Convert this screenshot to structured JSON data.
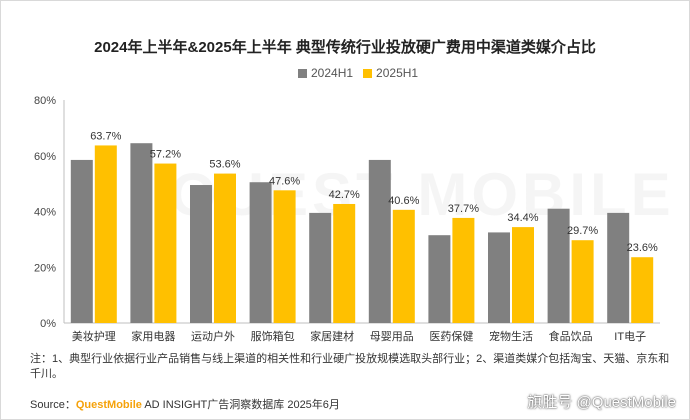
{
  "title": "2024年上半年&2025年上半年 典型传统行业投放硬广费用中渠道类媒介占比",
  "watermark": "QUEST MOBILE",
  "colors": {
    "h1_2024": "#808080",
    "h1_2025": "#ffc000",
    "axis": "#bfbfbf",
    "grid": "#d9d9d9"
  },
  "chart_data": {
    "type": "bar",
    "categories": [
      "美妆护理",
      "家用电器",
      "运动户外",
      "服饰箱包",
      "家居建材",
      "母婴用品",
      "医药保健",
      "宠物生活",
      "食品饮品",
      "IT电子"
    ],
    "series": [
      {
        "name": "2024H1",
        "values": [
          58.5,
          64.5,
          49.5,
          50.5,
          39.5,
          58.5,
          31.5,
          32.5,
          41.0,
          39.5
        ]
      },
      {
        "name": "2025H1",
        "values": [
          63.7,
          57.2,
          53.6,
          47.6,
          42.7,
          40.6,
          37.7,
          34.4,
          29.7,
          23.6
        ],
        "labels": [
          "63.7%",
          "57.2%",
          "53.6%",
          "47.6%",
          "42.7%",
          "40.6%",
          "37.7%",
          "34.4%",
          "29.7%",
          "23.6%"
        ]
      }
    ],
    "ylim": [
      0,
      80
    ],
    "yticks": [
      "0%",
      "20%",
      "40%",
      "60%",
      "80%"
    ],
    "ytick_values": [
      0,
      20,
      40,
      60,
      80
    ],
    "grid": false,
    "legend": "top-center"
  },
  "note": "注：1、典型行业依据行业产品销售与线上渠道的相关性和行业硬广投放规模选取头部行业；2、渠道类媒介包括淘宝、天猫、京东和千川。",
  "source": {
    "prefix": "Source：",
    "brand": "QuestMobile",
    "text": " AD INSIGHT广告洞察数据库 2025年6月"
  },
  "credit": "旗胜号 @QuestMobile"
}
